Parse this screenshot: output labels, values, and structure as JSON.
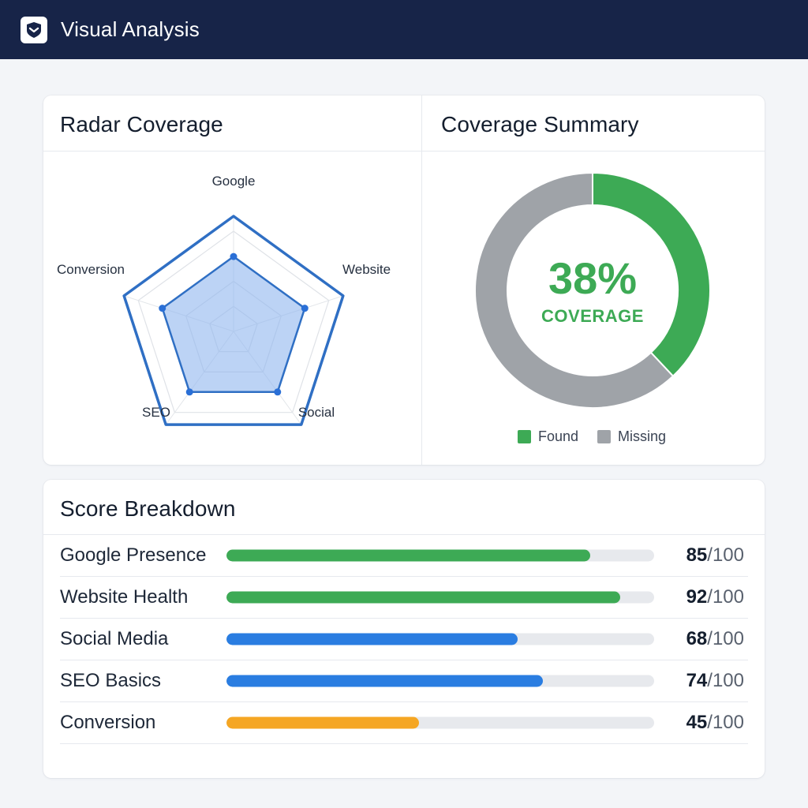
{
  "header": {
    "title": "Visual Analysis",
    "logo_icon": "shield-check-icon",
    "background": "#172448"
  },
  "radar": {
    "title": "Radar Coverage",
    "axes": [
      "Google",
      "Website",
      "Social",
      "SEO",
      "Conversion"
    ],
    "levels": 4,
    "max": 100,
    "values": [
      65,
      65,
      65,
      65,
      65
    ],
    "outer_color": "#2f6fc4",
    "fill_color": "#8fb6ee"
  },
  "summary": {
    "title": "Coverage Summary",
    "percent_text": "38%",
    "caption": "COVERAGE",
    "found_fraction": 0.38,
    "colors": {
      "found": "#3daa55",
      "missing": "#9fa3a8"
    },
    "legend": {
      "found": "Found",
      "missing": "Missing"
    }
  },
  "breakdown": {
    "title": "Score Breakdown",
    "rows": [
      {
        "label": "Google Presence",
        "score": "85",
        "max": "/100",
        "value": 85,
        "color": "#3daa55"
      },
      {
        "label": "Website Health",
        "score": "92",
        "max": "/100",
        "value": 92,
        "color": "#3daa55"
      },
      {
        "label": "Social Media",
        "score": "68",
        "max": "/100",
        "value": 68,
        "color": "#2a7de1"
      },
      {
        "label": "SEO Basics",
        "score": "74",
        "max": "/100",
        "value": 74,
        "color": "#2a7de1"
      },
      {
        "label": "Conversion",
        "score": "45",
        "max": "/100",
        "value": 45,
        "color": "#f5a623"
      }
    ]
  }
}
